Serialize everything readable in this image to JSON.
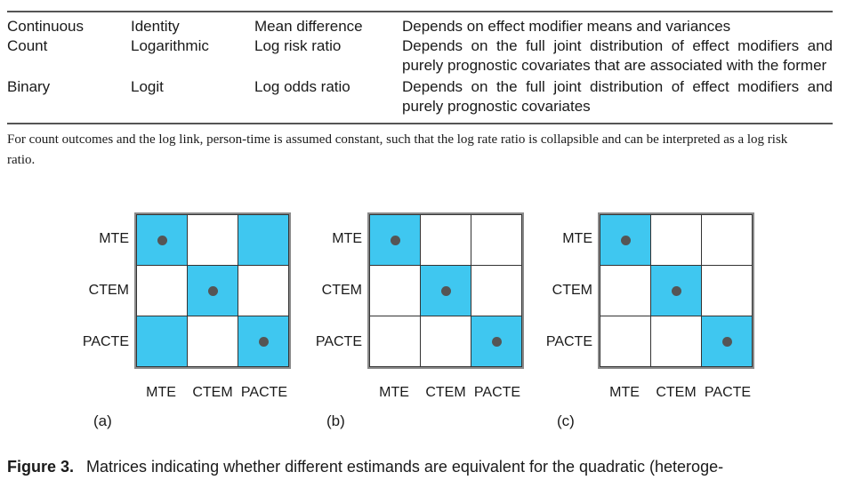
{
  "table": {
    "rows": [
      {
        "outcome": "Continuous",
        "link": "Identity",
        "measure": "Mean difference",
        "collapsibility": "Depends on effect modifier means and variances"
      },
      {
        "outcome": "Count",
        "link": "Logarithmic",
        "measure": "Log risk ratio",
        "collapsibility": "Depends on the full joint distribution of effect modifiers and purely prognostic covariates that are associated with the former"
      },
      {
        "outcome": "Binary",
        "link": "Logit",
        "measure": "Log odds ratio",
        "collapsibility": "Depends on the full joint distribution of effect modifiers and purely prognostic covariates"
      }
    ]
  },
  "note": "For count outcomes and the log link, person-time is assumed constant, such that the log rate ratio is collapsible and can be interpreted as a log risk ratio.",
  "figure": {
    "labels": [
      "MTE",
      "CTEM",
      "PACTE"
    ],
    "fill_color": "#3fc7f0",
    "panels": [
      {
        "label": "(a)",
        "equivalent": [
          [
            1,
            0,
            1
          ],
          [
            0,
            1,
            0
          ],
          [
            1,
            0,
            1
          ]
        ]
      },
      {
        "label": "(b)",
        "equivalent": [
          [
            1,
            0,
            0
          ],
          [
            0,
            1,
            0
          ],
          [
            0,
            0,
            1
          ]
        ]
      },
      {
        "label": "(c)",
        "equivalent": [
          [
            1,
            0,
            0
          ],
          [
            0,
            1,
            0
          ],
          [
            0,
            0,
            1
          ]
        ]
      }
    ]
  },
  "caption": {
    "label": "Figure 3.",
    "text": "Matrices indicating whether different estimands are equivalent for the quadratic (heteroge-"
  }
}
